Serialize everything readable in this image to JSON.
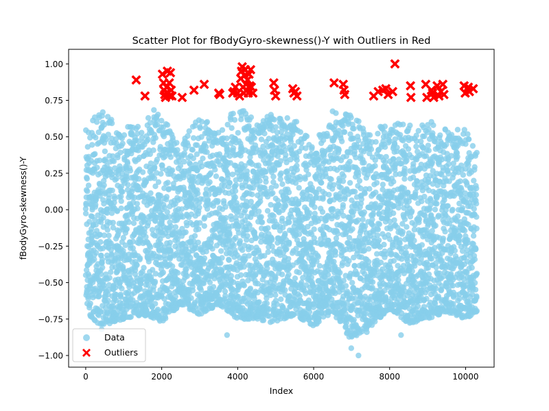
{
  "chart_data": {
    "type": "scatter",
    "title": "Scatter Plot for fBodyGyro-skewness()-Y with Outliers in Red",
    "xlabel": "Index",
    "ylabel": "fBodyGyro-skewness()-Y",
    "xlim": [
      -450,
      10750
    ],
    "ylim": [
      -1.08,
      1.1
    ],
    "x_ticks": [
      0,
      2000,
      4000,
      6000,
      8000,
      10000
    ],
    "x_tick_labels": [
      "0",
      "2000",
      "4000",
      "6000",
      "8000",
      "10000"
    ],
    "y_ticks": [
      -1.0,
      -0.75,
      -0.5,
      -0.25,
      0.0,
      0.25,
      0.5,
      0.75,
      1.0
    ],
    "y_tick_labels": [
      "−1.00",
      "−0.75",
      "−0.50",
      "−0.25",
      "0.00",
      "0.25",
      "0.50",
      "0.75",
      "1.00"
    ],
    "grid": false,
    "legend_position": "bottom-left",
    "series": [
      {
        "name": "Data",
        "color": "#87CEEB",
        "marker": "circle",
        "n_points": 10299,
        "x_range": [
          0,
          10298
        ],
        "y_range": [
          -1.0,
          0.75
        ],
        "density_profile": [
          {
            "x": 0,
            "low": -0.7,
            "high": 0.55
          },
          {
            "x": 400,
            "low": -0.8,
            "high": 0.7
          },
          {
            "x": 1000,
            "low": -0.75,
            "high": 0.55
          },
          {
            "x": 1500,
            "low": -0.72,
            "high": 0.65
          },
          {
            "x": 2000,
            "low": -0.77,
            "high": 0.72
          },
          {
            "x": 2500,
            "low": -0.65,
            "high": 0.45
          },
          {
            "x": 3000,
            "low": -0.72,
            "high": 0.65
          },
          {
            "x": 3500,
            "low": -0.65,
            "high": 0.55
          },
          {
            "x": 4000,
            "low": -0.75,
            "high": 0.72
          },
          {
            "x": 4500,
            "low": -0.75,
            "high": 0.6
          },
          {
            "x": 5000,
            "low": -0.78,
            "high": 0.68
          },
          {
            "x": 5500,
            "low": -0.72,
            "high": 0.62
          },
          {
            "x": 6000,
            "low": -0.8,
            "high": 0.45
          },
          {
            "x": 6500,
            "low": -0.7,
            "high": 0.68
          },
          {
            "x": 7000,
            "low": -0.9,
            "high": 0.65
          },
          {
            "x": 7500,
            "low": -0.8,
            "high": 0.55
          },
          {
            "x": 8000,
            "low": -0.68,
            "high": 0.6
          },
          {
            "x": 8500,
            "low": -0.78,
            "high": 0.58
          },
          {
            "x": 9000,
            "low": -0.75,
            "high": 0.62
          },
          {
            "x": 9500,
            "low": -0.7,
            "high": 0.55
          },
          {
            "x": 10000,
            "low": -0.75,
            "high": 0.55
          },
          {
            "x": 10298,
            "low": -0.7,
            "high": 0.4
          }
        ],
        "notable_points": [
          {
            "x": 420,
            "y": -0.82
          },
          {
            "x": 3720,
            "y": -0.86
          },
          {
            "x": 6990,
            "y": -0.95
          },
          {
            "x": 7180,
            "y": -1.0
          },
          {
            "x": 7400,
            "y": -0.84
          },
          {
            "x": 8300,
            "y": -0.86
          }
        ]
      },
      {
        "name": "Outliers",
        "color": "#FF0000",
        "marker": "x",
        "points": [
          {
            "x": 1330,
            "y": 0.89
          },
          {
            "x": 1560,
            "y": 0.78
          },
          {
            "x": 2020,
            "y": 0.93
          },
          {
            "x": 2050,
            "y": 0.87
          },
          {
            "x": 2060,
            "y": 0.82
          },
          {
            "x": 2080,
            "y": 0.79
          },
          {
            "x": 2100,
            "y": 0.77
          },
          {
            "x": 2130,
            "y": 0.84
          },
          {
            "x": 2150,
            "y": 0.95
          },
          {
            "x": 2170,
            "y": 0.8
          },
          {
            "x": 2200,
            "y": 0.87
          },
          {
            "x": 2210,
            "y": 0.78
          },
          {
            "x": 2230,
            "y": 0.94
          },
          {
            "x": 2250,
            "y": 0.82
          },
          {
            "x": 2270,
            "y": 0.78
          },
          {
            "x": 2540,
            "y": 0.77
          },
          {
            "x": 2850,
            "y": 0.82
          },
          {
            "x": 3120,
            "y": 0.86
          },
          {
            "x": 3500,
            "y": 0.8
          },
          {
            "x": 3530,
            "y": 0.79
          },
          {
            "x": 3870,
            "y": 0.8
          },
          {
            "x": 3900,
            "y": 0.81
          },
          {
            "x": 3940,
            "y": 0.84
          },
          {
            "x": 4000,
            "y": 0.8
          },
          {
            "x": 4050,
            "y": 0.78
          },
          {
            "x": 4080,
            "y": 0.9
          },
          {
            "x": 4100,
            "y": 0.95
          },
          {
            "x": 4120,
            "y": 0.98
          },
          {
            "x": 4140,
            "y": 0.84
          },
          {
            "x": 4160,
            "y": 0.8
          },
          {
            "x": 4180,
            "y": 0.92
          },
          {
            "x": 4200,
            "y": 0.96
          },
          {
            "x": 4220,
            "y": 0.86
          },
          {
            "x": 4240,
            "y": 0.82
          },
          {
            "x": 4260,
            "y": 0.89
          },
          {
            "x": 4280,
            "y": 0.8
          },
          {
            "x": 4300,
            "y": 0.93
          },
          {
            "x": 4320,
            "y": 0.85
          },
          {
            "x": 4340,
            "y": 0.96
          },
          {
            "x": 4360,
            "y": 0.84
          },
          {
            "x": 4400,
            "y": 0.8
          },
          {
            "x": 4950,
            "y": 0.87
          },
          {
            "x": 4970,
            "y": 0.82
          },
          {
            "x": 5000,
            "y": 0.78
          },
          {
            "x": 5450,
            "y": 0.83
          },
          {
            "x": 5480,
            "y": 0.8
          },
          {
            "x": 5520,
            "y": 0.81
          },
          {
            "x": 5560,
            "y": 0.78
          },
          {
            "x": 6540,
            "y": 0.87
          },
          {
            "x": 6780,
            "y": 0.86
          },
          {
            "x": 6800,
            "y": 0.82
          },
          {
            "x": 6820,
            "y": 0.79
          },
          {
            "x": 7580,
            "y": 0.78
          },
          {
            "x": 7700,
            "y": 0.81
          },
          {
            "x": 7820,
            "y": 0.82
          },
          {
            "x": 7900,
            "y": 0.83
          },
          {
            "x": 7960,
            "y": 0.79
          },
          {
            "x": 8080,
            "y": 0.81
          },
          {
            "x": 8140,
            "y": 1.0
          },
          {
            "x": 8550,
            "y": 0.85
          },
          {
            "x": 8560,
            "y": 0.77
          },
          {
            "x": 8950,
            "y": 0.86
          },
          {
            "x": 8980,
            "y": 0.77
          },
          {
            "x": 9100,
            "y": 0.82
          },
          {
            "x": 9130,
            "y": 0.8
          },
          {
            "x": 9160,
            "y": 0.77
          },
          {
            "x": 9250,
            "y": 0.85
          },
          {
            "x": 9300,
            "y": 0.78
          },
          {
            "x": 9350,
            "y": 0.81
          },
          {
            "x": 9400,
            "y": 0.86
          },
          {
            "x": 9430,
            "y": 0.79
          },
          {
            "x": 9960,
            "y": 0.85
          },
          {
            "x": 9990,
            "y": 0.8
          },
          {
            "x": 10070,
            "y": 0.84
          },
          {
            "x": 10100,
            "y": 0.81
          },
          {
            "x": 10200,
            "y": 0.83
          }
        ]
      }
    ]
  }
}
